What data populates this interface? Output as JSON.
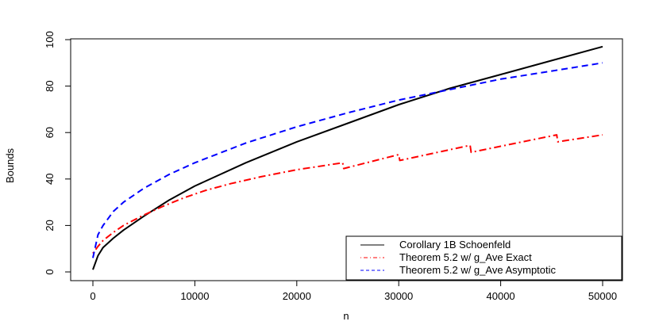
{
  "chart_data": {
    "type": "line",
    "title": "",
    "xlabel": "n",
    "ylabel": "Bounds",
    "xlim": [
      0,
      50000
    ],
    "ylim": [
      0,
      100
    ],
    "x_ticks": [
      0,
      10000,
      20000,
      30000,
      40000,
      50000
    ],
    "x_tick_labels": [
      "0",
      "10000",
      "20000",
      "30000",
      "40000",
      "50000"
    ],
    "y_ticks": [
      0,
      20,
      40,
      60,
      80,
      100
    ],
    "y_tick_labels": [
      "0",
      "20",
      "40",
      "60",
      "80",
      "100"
    ],
    "grid": false,
    "legend_position": "bottom-right",
    "series": [
      {
        "name": "Corollary 1B Schoenfeld",
        "color": "#000000",
        "line_style": "solid",
        "x": [
          0,
          500,
          1000,
          2000,
          3000,
          5000,
          7500,
          10000,
          15000,
          20000,
          25000,
          30000,
          35000,
          40000,
          45000,
          50000
        ],
        "y": [
          1,
          7,
          10.5,
          14.5,
          18,
          24,
          31,
          37,
          47,
          56,
          64,
          72,
          79,
          85,
          91,
          97
        ]
      },
      {
        "name": "Theorem 5.2 w/ g_Ave Exact",
        "color": "#ff0000",
        "line_style": "dotdash",
        "x": [
          0,
          500,
          1000,
          2000,
          3000,
          5000,
          7000,
          9000,
          11000,
          13500,
          16500,
          20000,
          24500,
          24600,
          30000,
          30100,
          37000,
          37100,
          45500,
          45600,
          50000
        ],
        "y": [
          8,
          11,
          13.5,
          17,
          20,
          24.5,
          28.5,
          32,
          35,
          38,
          41,
          44,
          47,
          44.5,
          50.5,
          48,
          54.5,
          51.5,
          59,
          56,
          59
        ]
      },
      {
        "name": "Theorem 5.2 w/ g_Ave Asymptotic",
        "color": "#0000ff",
        "line_style": "dashed",
        "x": [
          0,
          500,
          1000,
          2000,
          3000,
          5000,
          7500,
          10000,
          15000,
          20000,
          25000,
          30000,
          35000,
          40000,
          45000,
          50000
        ],
        "y": [
          6,
          16,
          20,
          26,
          30,
          36,
          42,
          47,
          55.5,
          62.5,
          68.5,
          74,
          78.5,
          83,
          86.5,
          90
        ]
      }
    ]
  }
}
